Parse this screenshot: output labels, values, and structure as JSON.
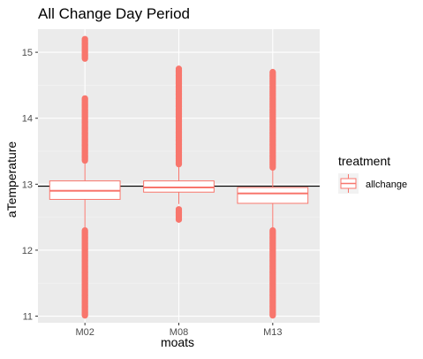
{
  "chart_data": {
    "type": "boxplot",
    "title": "All Change Day Period",
    "xlabel": "moats",
    "ylabel": "aTemperature",
    "categories": [
      "M02",
      "M08",
      "M13"
    ],
    "ylim": [
      10.9,
      15.35
    ],
    "yticks": [
      11,
      12,
      13,
      14,
      15
    ],
    "reference_line": 12.97,
    "legend": {
      "title": "treatment",
      "entries": [
        "allchange"
      ],
      "position": "right"
    },
    "colors": {
      "series": "#f8766d",
      "panel": "#ebebeb",
      "grid_major": "#ffffff",
      "grid_minor": "#f5f5f5",
      "reference_line": "#000000"
    },
    "series": [
      {
        "name": "allchange",
        "boxes": [
          {
            "category": "M02",
            "whisker_low": 12.3,
            "q1": 12.77,
            "median": 12.9,
            "q3": 13.05,
            "whisker_high": 13.35,
            "outlier_ranges": [
              [
                11.0,
                12.3
              ],
              [
                13.35,
                14.3
              ],
              [
                14.9,
                15.2
              ]
            ]
          },
          {
            "category": "M08",
            "whisker_low": 12.7,
            "q1": 12.88,
            "median": 12.95,
            "q3": 13.05,
            "whisker_high": 13.3,
            "outlier_ranges": [
              [
                12.45,
                12.62
              ],
              [
                13.3,
                14.75
              ]
            ]
          },
          {
            "category": "M13",
            "whisker_low": 12.3,
            "q1": 12.71,
            "median": 12.86,
            "q3": 12.95,
            "whisker_high": 13.25,
            "outlier_ranges": [
              [
                11.0,
                12.3
              ],
              [
                13.25,
                14.7
              ]
            ]
          }
        ]
      }
    ]
  }
}
